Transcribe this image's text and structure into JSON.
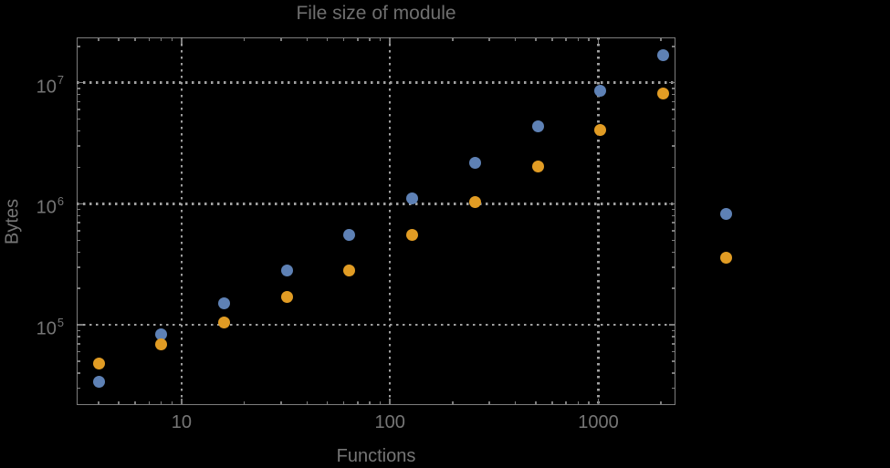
{
  "chart_data": {
    "type": "scatter",
    "title": "File size of module",
    "xlabel": "Functions",
    "ylabel": "Bytes",
    "x_scale": "log",
    "y_scale": "log",
    "grid": "dotted",
    "legend": "none",
    "x_ticks": [
      10,
      100,
      1000
    ],
    "x_tick_labels": [
      "10",
      "100",
      "1000"
    ],
    "y_ticks": [
      100000,
      1000000,
      10000000
    ],
    "y_tick_labels": [
      {
        "base": "10",
        "exp": "5"
      },
      {
        "base": "10",
        "exp": "6"
      },
      {
        "base": "10",
        "exp": "7"
      }
    ],
    "plot_range": {
      "x": [
        3.14,
        2345
      ],
      "y": [
        21800,
        23700000
      ]
    },
    "x": [
      4,
      8,
      16,
      32,
      64,
      128,
      256,
      512,
      1024,
      2048,
      4096
    ],
    "series": [
      {
        "name": "series_blue",
        "color": "#5e81b5",
        "values": [
          34000,
          84000,
          150000,
          284000,
          550000,
          1100000,
          2200000,
          4330000,
          8520000,
          16800000,
          830000
        ]
      },
      {
        "name": "series_orange",
        "color": "#e19c24",
        "values": [
          47600,
          68600,
          104000,
          169000,
          284000,
          550000,
          1030000,
          2020000,
          4040000,
          8090000,
          360000
        ]
      }
    ],
    "colors": {
      "background": "#000000",
      "frame": "#7d7d7d",
      "grid": "#a0a0a0",
      "tick_text": "#767676",
      "title_text": "#6f6f6f",
      "series_blue": "#5e81b5",
      "series_orange": "#e19c24"
    }
  }
}
